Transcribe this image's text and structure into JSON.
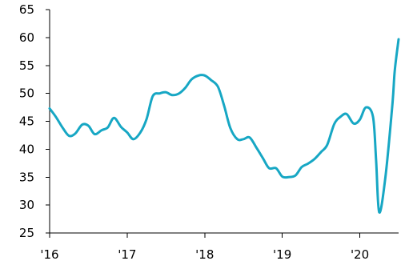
{
  "chart_data": {
    "type": "line",
    "title": "",
    "xlabel": "",
    "ylabel": "",
    "ylim": [
      25,
      65
    ],
    "yticks": [
      25,
      30,
      35,
      40,
      45,
      50,
      55,
      60,
      65
    ],
    "xlim": [
      2016.0,
      2020.5
    ],
    "xticks": [
      {
        "value": 2016,
        "label": "'16"
      },
      {
        "value": 2017,
        "label": "'17"
      },
      {
        "value": 2018,
        "label": "'18"
      },
      {
        "value": 2019,
        "label": "'19"
      },
      {
        "value": 2020,
        "label": "'20"
      }
    ],
    "grid": false,
    "legend": "none",
    "series": [
      {
        "color": "#17a7c4",
        "points": [
          [
            2016.0,
            47.3
          ],
          [
            2016.08,
            45.8
          ],
          [
            2016.17,
            43.8
          ],
          [
            2016.25,
            42.4
          ],
          [
            2016.33,
            42.8
          ],
          [
            2016.42,
            44.4
          ],
          [
            2016.5,
            44.2
          ],
          [
            2016.58,
            42.7
          ],
          [
            2016.67,
            43.4
          ],
          [
            2016.75,
            43.9
          ],
          [
            2016.83,
            45.6
          ],
          [
            2016.92,
            44.0
          ],
          [
            2017.0,
            43.0
          ],
          [
            2017.08,
            41.8
          ],
          [
            2017.17,
            43.0
          ],
          [
            2017.25,
            45.4
          ],
          [
            2017.33,
            49.5
          ],
          [
            2017.42,
            50.0
          ],
          [
            2017.5,
            50.2
          ],
          [
            2017.58,
            49.7
          ],
          [
            2017.67,
            50.0
          ],
          [
            2017.75,
            51.0
          ],
          [
            2017.83,
            52.5
          ],
          [
            2017.92,
            53.2
          ],
          [
            2018.0,
            53.2
          ],
          [
            2018.08,
            52.4
          ],
          [
            2018.17,
            51.2
          ],
          [
            2018.25,
            47.8
          ],
          [
            2018.33,
            43.8
          ],
          [
            2018.42,
            41.8
          ],
          [
            2018.5,
            41.8
          ],
          [
            2018.58,
            42.1
          ],
          [
            2018.67,
            40.2
          ],
          [
            2018.75,
            38.4
          ],
          [
            2018.83,
            36.6
          ],
          [
            2018.92,
            36.6
          ],
          [
            2019.0,
            35.1
          ],
          [
            2019.08,
            35.0
          ],
          [
            2019.17,
            35.3
          ],
          [
            2019.25,
            36.8
          ],
          [
            2019.33,
            37.4
          ],
          [
            2019.42,
            38.3
          ],
          [
            2019.5,
            39.5
          ],
          [
            2019.58,
            40.8
          ],
          [
            2019.67,
            44.5
          ],
          [
            2019.75,
            45.8
          ],
          [
            2019.83,
            46.3
          ],
          [
            2019.92,
            44.6
          ],
          [
            2020.0,
            45.3
          ],
          [
            2020.08,
            47.5
          ],
          [
            2020.17,
            45.8
          ],
          [
            2020.21,
            38.0
          ],
          [
            2020.25,
            28.7
          ],
          [
            2020.33,
            35.0
          ],
          [
            2020.42,
            48.0
          ],
          [
            2020.45,
            54.0
          ],
          [
            2020.5,
            59.7
          ]
        ]
      }
    ]
  }
}
